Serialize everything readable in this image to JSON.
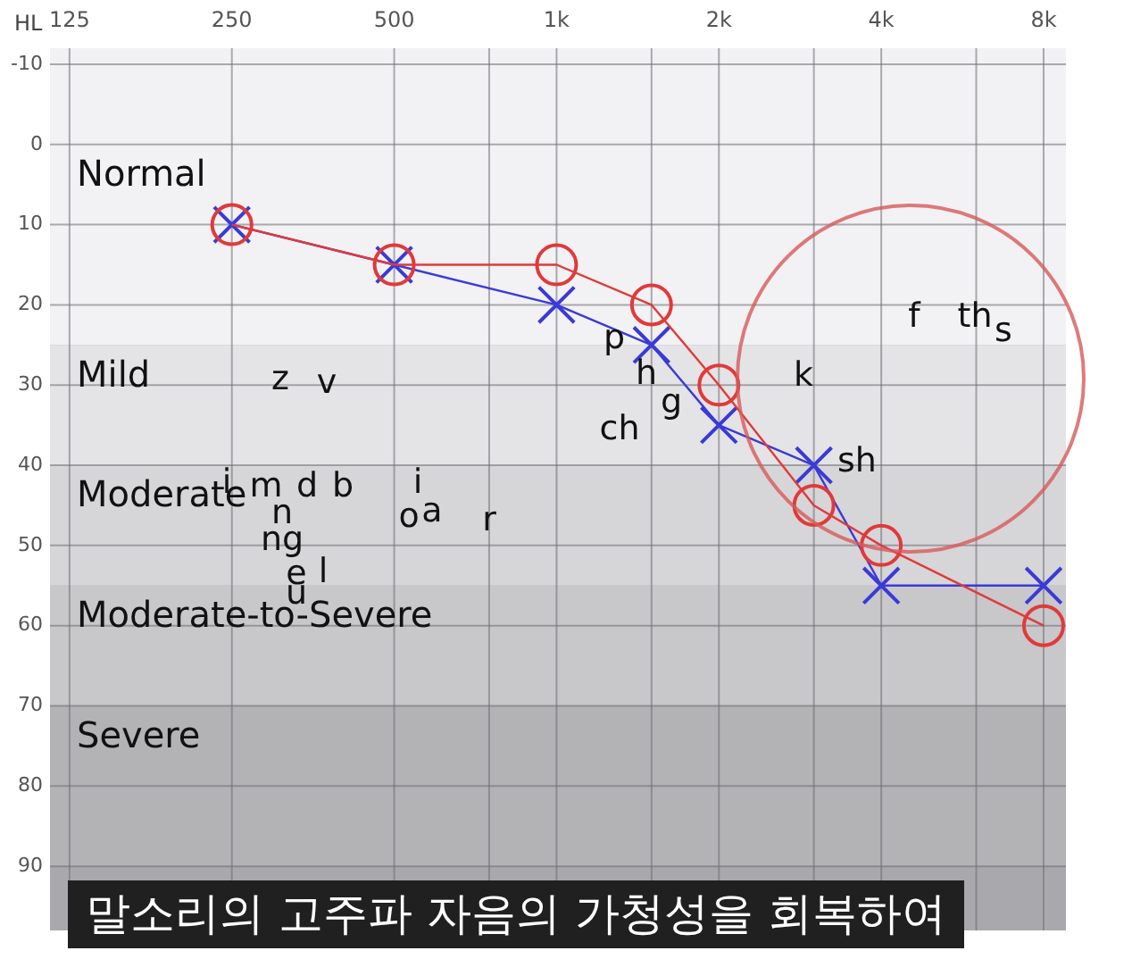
{
  "chart_data": {
    "type": "line",
    "ylabel": "HL",
    "log": "x",
    "grid": true,
    "legend": false,
    "xlim": [
      115,
      8800
    ],
    "ylim": [
      98,
      -12
    ],
    "xticks": [
      125,
      250,
      500,
      {
        "value": 750,
        "label": null
      },
      {
        "value": 1000,
        "label": "1k"
      },
      {
        "value": 1500,
        "label": null
      },
      {
        "value": 2000,
        "label": "2k"
      },
      {
        "value": 3000,
        "label": null
      },
      {
        "value": 4000,
        "label": "4k"
      },
      {
        "value": 6000,
        "label": null
      },
      {
        "value": 8000,
        "label": "8k"
      }
    ],
    "yticks": [
      -10,
      0,
      10,
      20,
      30,
      40,
      50,
      60,
      70,
      80,
      90
    ],
    "series": [
      {
        "color": "#e03a3a",
        "marker": "circle",
        "x": [
          250,
          500,
          1000,
          1500,
          2000,
          3000,
          4000,
          8000
        ],
        "values": [
          10,
          15,
          15,
          20,
          30,
          45,
          50,
          60
        ]
      },
      {
        "color": "#3a3ad8",
        "marker": "cross",
        "x": [
          250,
          500,
          1000,
          1500,
          2000,
          3000,
          4000,
          8000
        ],
        "values": [
          10,
          15,
          20,
          25,
          35,
          40,
          55,
          55
        ]
      }
    ],
    "bands": [
      {
        "axis": "y",
        "from": -12,
        "to": 25,
        "label": "Normal",
        "color": "#f2f1f4"
      },
      {
        "axis": "y",
        "from": 25,
        "to": 40,
        "label": "Mild",
        "color": "#e4e3e6"
      },
      {
        "axis": "y",
        "from": 40,
        "to": 55,
        "label": "Moderate",
        "color": "#d6d5d8"
      },
      {
        "axis": "y",
        "from": 55,
        "to": 70,
        "label": "Moderate-to-Severe",
        "color": "#c8c7ca"
      },
      {
        "axis": "y",
        "from": 70,
        "to": 90,
        "label": "Severe",
        "color": "#b3b2b5"
      }
    ],
    "annotations": [
      "f",
      "th",
      "s",
      "k",
      "sh",
      "p",
      "h",
      "g",
      "ch",
      "z",
      "v",
      "i",
      "m",
      "d",
      "b",
      "n",
      "ng",
      "e",
      "l",
      "u",
      "i",
      "o",
      "a",
      "r",
      "말소리의 고주파 자음의 가청성을 회복하여"
    ]
  }
}
